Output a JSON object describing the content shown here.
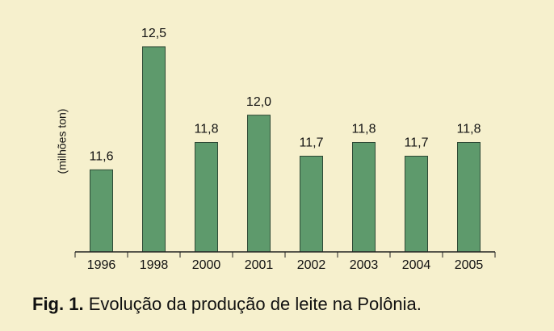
{
  "chart_data": {
    "type": "bar",
    "y_axis_label": "(milhões ton)",
    "caption_label": "Fig. 1.",
    "caption": "Evolução da produção de leite na Polônia.",
    "categories": [
      "1996",
      "1998",
      "2000",
      "2001",
      "2002",
      "2003",
      "2004",
      "2005"
    ],
    "values": [
      11.6,
      12.5,
      11.8,
      12.0,
      11.7,
      11.8,
      11.7,
      11.8
    ],
    "value_labels": [
      "11,6",
      "12,5",
      "11,8",
      "12,0",
      "11,7",
      "11,8",
      "11,7",
      "11,8"
    ],
    "color": "#5e9a6c",
    "ylim": [
      11,
      12.6
    ]
  }
}
